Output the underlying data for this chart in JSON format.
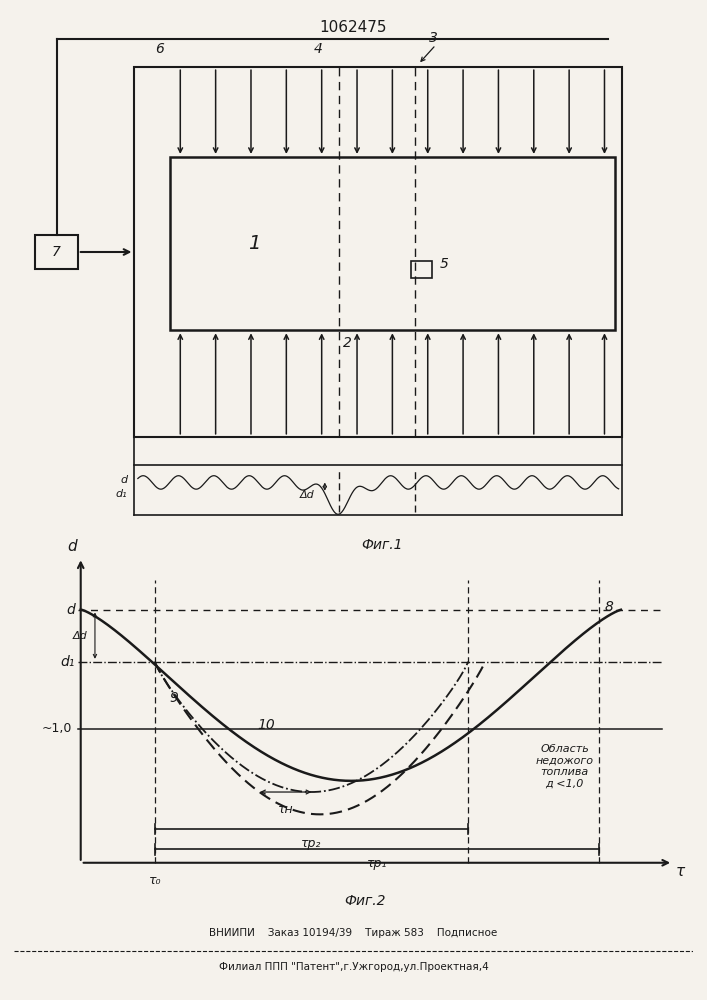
{
  "title": "1062475",
  "fig_caption_1": "Фиг.1",
  "fig_caption_2": "Фиг.2",
  "footer_line1": "ВНИИПИ    Заказ 10194/39    Тираж 583    Подписное",
  "footer_line2": "Филиал ППП \"Патент\",г.Ужгород,ул.Проектная,4",
  "bg_color": "#f5f2ec",
  "line_color": "#1a1a1a",
  "label_d": "d",
  "label_d1": "d₁",
  "label_delta_d": "Δd",
  "label_tau0": "τ₀",
  "label_tau_n": "τн",
  "label_tau_p1": "τр₁",
  "label_tau_p2": "τр₂",
  "label_tau": "τ",
  "label_approx": "~1,0",
  "label_8": "8",
  "label_9": "9",
  "label_10": "10",
  "label_oblast": "Область\nнедожого\nтоплива\nд <1,0",
  "label_1": "1",
  "label_2": "2",
  "label_3": "3",
  "label_4": "4",
  "label_5": "5",
  "label_6": "6",
  "label_7": "7"
}
